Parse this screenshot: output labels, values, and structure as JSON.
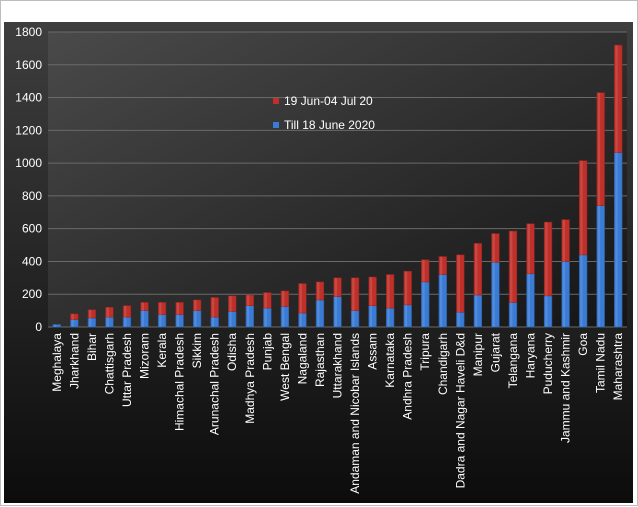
{
  "chart_data": {
    "type": "bar",
    "stacked": true,
    "title": "",
    "xlabel": "",
    "ylabel": "",
    "ylim": [
      0,
      1800
    ],
    "yticks": [
      0,
      200,
      400,
      600,
      800,
      1000,
      1200,
      1400,
      1600,
      1800
    ],
    "grid": true,
    "legend_position": "upper-left-inside",
    "categories": [
      "Meghalaya",
      "Jharkhand",
      "Bihar",
      "Chattisgarh",
      "Uttar Pradesh",
      "Mizoram",
      "Kerala",
      "Himachal Pradesh",
      "Sikkim",
      "Arunachal Pradesh",
      "Odisha",
      "Madhya Pradesh",
      "Punjab",
      "West Bengal",
      "Nagaland",
      "Rajasthan",
      "Uttarakhand",
      "Andaman and Nicobar Islands",
      "Assam",
      "Karnataka",
      "Andhra Pradesh",
      "Tripura",
      "Chandigarh",
      "Dadra and Nagar Haveli D&d",
      "Manipur",
      "Gujarat",
      "Telangana",
      "Haryana",
      "Puducherry",
      "Jammu and Kashmir",
      "Goa",
      "Tamil Nadu",
      "Maharashtra"
    ],
    "series": [
      {
        "name": "Till 18 June 2020",
        "color": "#3a7bd5",
        "values": [
          15,
          45,
          55,
          60,
          60,
          100,
          75,
          75,
          100,
          60,
          95,
          130,
          115,
          125,
          85,
          165,
          185,
          100,
          130,
          115,
          135,
          275,
          320,
          90,
          195,
          395,
          150,
          325,
          190,
          400,
          440,
          740,
          1065
        ]
      },
      {
        "name": "19 Jun-04 Jul 20",
        "color": "#c0302a",
        "values": [
          0,
          35,
          50,
          60,
          70,
          50,
          75,
          75,
          65,
          120,
          95,
          65,
          95,
          95,
          180,
          110,
          115,
          200,
          175,
          205,
          205,
          135,
          110,
          350,
          315,
          175,
          435,
          305,
          450,
          255,
          575,
          690,
          655
        ]
      }
    ]
  }
}
